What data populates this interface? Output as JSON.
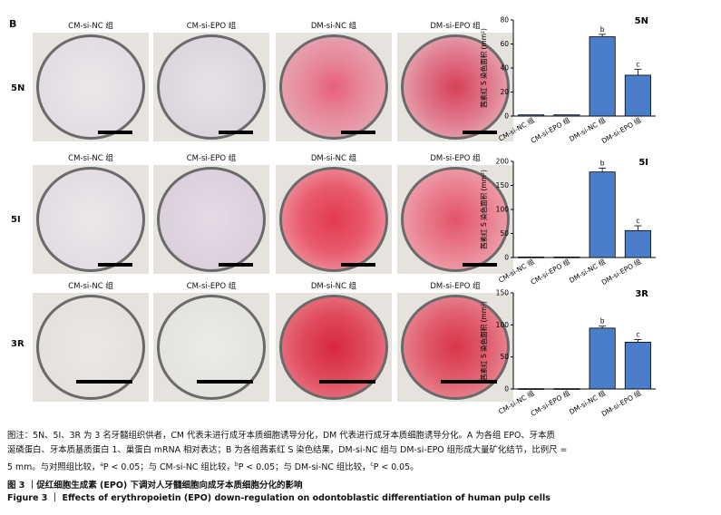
{
  "panel_letter": "B",
  "column_headers": [
    "CM-si-NC 组",
    "CM-si-EPO 组",
    "DM-si-NC 组",
    "DM-si-EPO 组"
  ],
  "rows": [
    {
      "label": "5N"
    },
    {
      "label": "5I"
    },
    {
      "label": "3R"
    }
  ],
  "colors": {
    "bar": "#4a7ec8",
    "stain": "#d73a55",
    "well_rim": "#6a6a6a"
  },
  "chart_data": [
    {
      "type": "bar",
      "title": "5N",
      "ylabel": "茜素红 S 染色面积 (mm²)",
      "categories": [
        "CM-si-NC 组",
        "CM-si-EPO 组",
        "DM-si-NC 组",
        "DM-si-EPO 组"
      ],
      "values": [
        1,
        1,
        66,
        34
      ],
      "errors": [
        0.5,
        0.5,
        2,
        5
      ],
      "annotations": [
        "",
        "",
        "b",
        "c"
      ],
      "ylim": [
        0,
        80
      ],
      "yticks": [
        0,
        20,
        40,
        60,
        80
      ]
    },
    {
      "type": "bar",
      "title": "5I",
      "ylabel": "茜素红 S 染色面积 (mm²)",
      "categories": [
        "CM-si-NC 组",
        "CM-si-EPO 组",
        "DM-si-NC 组",
        "DM-si-EPO 组"
      ],
      "values": [
        1,
        1,
        178,
        56
      ],
      "errors": [
        0.5,
        0.5,
        8,
        10
      ],
      "annotations": [
        "",
        "",
        "b",
        "c"
      ],
      "ylim": [
        0,
        200
      ],
      "yticks": [
        0,
        50,
        100,
        150,
        200
      ]
    },
    {
      "type": "bar",
      "title": "3R",
      "ylabel": "茜素红 S 染色面积 (mm²)",
      "categories": [
        "CM-si-NC 组",
        "CM-si-EPO 组",
        "DM-si-NC 组",
        "DM-si-EPO 组"
      ],
      "values": [
        0.5,
        0.5,
        95,
        73
      ],
      "errors": [
        0.3,
        0.3,
        3,
        4
      ],
      "annotations": [
        "",
        "",
        "b",
        "c"
      ],
      "ylim": [
        0,
        150
      ],
      "yticks": [
        0,
        50,
        100,
        150
      ]
    }
  ],
  "caption_line1": "图注：5N、5I、3R 为 3 名牙髓组织供者，CM 代表未进行成牙本质细胞诱导分化，DM 代表进行成牙本质细胞诱导分化。A 为各组 EPO、牙本质",
  "caption_line2": "涎磷蛋白、牙本质基质蛋白 1、巢蛋白 mRNA 相对表达；B 为各组茜素红 S 染色结果，DM-si-NC 组与 DM-si-EPO 组形成大量矿化结节，比例尺 =",
  "caption_line3_a": "5 mm。与对照组比较，",
  "caption_line3_b": "P < 0.05；与 CM-si-NC 组比较，",
  "caption_line3_c": "P < 0.05；与 DM-si-NC 组比较，",
  "caption_line3_d": "P < 0.05。",
  "sup_a": "a",
  "sup_b": "b",
  "sup_c": "c",
  "figure_title_cn": "图 3 ｜促红细胞生成素 (EPO) 下调对人牙髓细胞向成牙本质细胞分化的影响",
  "figure_title_en": "Figure 3 ｜ Effects of erythropoietin (EPO) down-regulation on odontoblastic differentiation of human pulp cells"
}
